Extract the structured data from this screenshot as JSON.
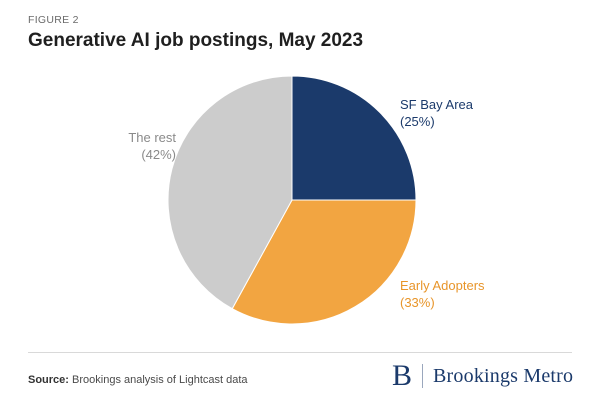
{
  "header": {
    "figure_label": "FIGURE 2",
    "title": "Generative AI job postings, May 2023"
  },
  "chart_data": {
    "type": "pie",
    "title": "Generative AI job postings, May 2023",
    "slices": [
      {
        "label": "SF Bay Area",
        "value": 25,
        "display": "(25%)",
        "color": "#1b3a6b",
        "label_color": "#1b3a6b"
      },
      {
        "label": "Early Adopters",
        "value": 33,
        "display": "(33%)",
        "color": "#f2a541",
        "label_color": "#e8952a"
      },
      {
        "label": "The rest",
        "value": 42,
        "display": "(42%)",
        "color": "#cccccc",
        "label_color": "#8a8a8a"
      }
    ],
    "start_angle_deg": 0,
    "direction": "clockwise-from-top"
  },
  "footer": {
    "source_label": "Source:",
    "source_text": "Brookings analysis of Lightcast data",
    "brand_letter": "B",
    "brand_name": "Brookings Metro"
  }
}
